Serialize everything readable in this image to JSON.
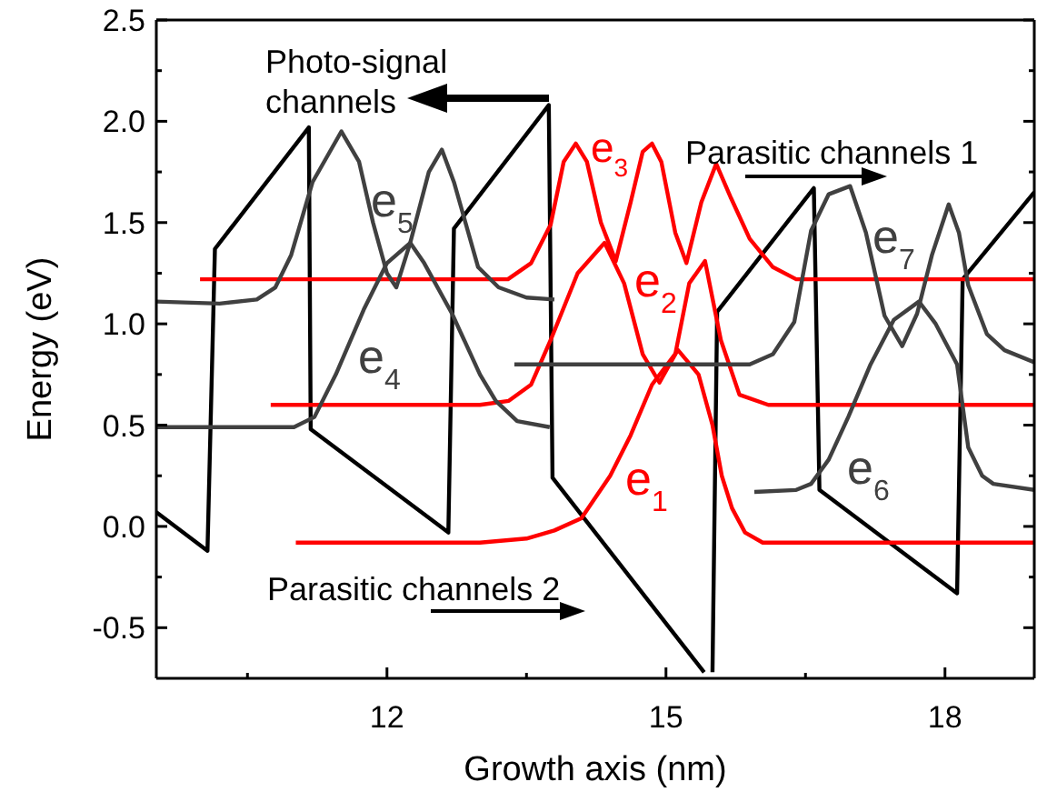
{
  "chart_data": {
    "type": "line",
    "xlabel": "Growth axis (nm)",
    "ylabel": "Energy (eV)",
    "xlim": [
      9.52,
      18.96
    ],
    "ylim": [
      -0.75,
      2.5
    ],
    "xticks": [
      {
        "value": 10.5,
        "label": null
      },
      12,
      {
        "value": 13.5,
        "label": null
      },
      15,
      {
        "value": 16.5,
        "label": null
      },
      18
    ],
    "yticks": [
      {
        "value": -0.5,
        "label": "-0.5"
      },
      {
        "value": -0.25,
        "label": null
      },
      {
        "value": 0,
        "label": "0.0"
      },
      {
        "value": 0.25,
        "label": null
      },
      {
        "value": 0.5,
        "label": "0.5"
      },
      {
        "value": 0.75,
        "label": null
      },
      {
        "value": 1,
        "label": "1.0"
      },
      {
        "value": 1.25,
        "label": null
      },
      {
        "value": 1.5,
        "label": "1.5"
      },
      {
        "value": 1.75,
        "label": null
      },
      {
        "value": 2,
        "label": "2.0"
      },
      {
        "value": 2.25,
        "label": null
      },
      {
        "value": 2.5,
        "label": "2.5"
      }
    ],
    "annotations": [
      "Photo-signal channels",
      "Parasitic channels 1",
      "Parasitic channels 2"
    ],
    "series": [
      {
        "type": "line",
        "color": "#000000",
        "x": [
          9.52,
          10.07,
          10.15,
          11.16,
          11.18,
          12.66,
          12.72,
          13.74,
          13.78,
          15.41,
          15.46,
          15.5,
          15.55,
          16.59,
          16.65,
          18.13,
          18.19,
          18.96
        ],
        "values": [
          0.07,
          -0.12,
          1.37,
          1.97,
          0.48,
          -0.03,
          1.47,
          2.08,
          0.24,
          -0.72,
          null,
          -0.72,
          1.06,
          1.67,
          0.18,
          -0.33,
          1.22,
          1.65
        ]
      },
      {
        "type": "line",
        "name": "e$_{1}$",
        "color": "#ff0000",
        "x": [
          11.02,
          13.0,
          13.5,
          13.8,
          14.09,
          14.4,
          14.62,
          14.85,
          15.13,
          15.35,
          15.5,
          15.6,
          15.71,
          15.85,
          16.04,
          18.96
        ],
        "values": [
          -0.08,
          -0.08,
          -0.06,
          -0.02,
          0.04,
          0.25,
          0.45,
          0.7,
          0.87,
          0.75,
          0.5,
          0.25,
          0.09,
          -0.03,
          -0.08,
          -0.08
        ]
      },
      {
        "type": "line",
        "name": "e$_{2}$",
        "color": "#ff0000",
        "x": [
          10.75,
          13.0,
          13.31,
          13.55,
          13.76,
          14.05,
          14.34,
          14.55,
          14.75,
          14.93,
          15.1,
          15.25,
          15.42,
          15.59,
          15.79,
          16.1,
          18.96
        ],
        "values": [
          0.6,
          0.6,
          0.62,
          0.7,
          0.92,
          1.25,
          1.4,
          1.2,
          0.85,
          0.71,
          0.85,
          1.2,
          1.31,
          0.92,
          0.65,
          0.6,
          0.6
        ]
      },
      {
        "type": "line",
        "name": "e$_{3}$",
        "color": "#ff0000",
        "x": [
          9.99,
          13.3,
          13.55,
          13.76,
          13.9,
          14.03,
          14.15,
          14.3,
          14.46,
          14.62,
          14.75,
          14.85,
          14.95,
          15.1,
          15.22,
          15.38,
          15.54,
          15.7,
          15.9,
          16.15,
          16.4,
          18.96
        ],
        "values": [
          1.22,
          1.22,
          1.3,
          1.49,
          1.8,
          1.89,
          1.8,
          1.5,
          1.31,
          1.6,
          1.85,
          1.89,
          1.8,
          1.45,
          1.3,
          1.6,
          1.79,
          1.62,
          1.42,
          1.28,
          1.22,
          1.22
        ]
      },
      {
        "type": "line",
        "name": "e$_{4}$",
        "color": "#404040",
        "x": [
          9.52,
          11.0,
          11.22,
          11.45,
          11.75,
          12.0,
          12.25,
          12.4,
          12.7,
          13.0,
          13.17,
          13.4,
          13.75
        ],
        "values": [
          0.49,
          0.49,
          0.54,
          0.75,
          1.07,
          1.3,
          1.4,
          1.3,
          1.05,
          0.75,
          0.62,
          0.52,
          0.49
        ]
      },
      {
        "type": "line",
        "name": "e$_{5}$",
        "color": "#404040",
        "x": [
          9.52,
          10.2,
          10.6,
          10.8,
          10.97,
          11.2,
          11.51,
          11.7,
          11.85,
          12.0,
          12.1,
          12.25,
          12.45,
          12.59,
          12.72,
          12.98,
          13.2,
          13.5,
          13.8
        ],
        "values": [
          1.11,
          1.1,
          1.12,
          1.18,
          1.34,
          1.7,
          1.95,
          1.8,
          1.5,
          1.25,
          1.18,
          1.4,
          1.75,
          1.86,
          1.7,
          1.28,
          1.18,
          1.13,
          1.12
        ]
      },
      {
        "type": "line",
        "name": "e$_{6}$",
        "color": "#404040",
        "x": [
          15.95,
          16.4,
          16.56,
          16.75,
          16.96,
          17.2,
          17.45,
          17.72,
          17.9,
          18.13,
          18.25,
          18.4,
          18.52,
          18.96
        ],
        "values": [
          0.17,
          0.18,
          0.21,
          0.33,
          0.54,
          0.8,
          1.02,
          1.11,
          1.0,
          0.8,
          0.39,
          0.25,
          0.21,
          0.18
        ]
      },
      {
        "type": "line",
        "name": "e$_{7}$",
        "color": "#404040",
        "x": [
          13.37,
          15.9,
          16.15,
          16.38,
          16.56,
          16.75,
          16.98,
          17.15,
          17.35,
          17.54,
          17.7,
          17.86,
          18.04,
          18.15,
          18.25,
          18.45,
          18.64,
          18.96
        ],
        "values": [
          0.8,
          0.8,
          0.85,
          1.01,
          1.46,
          1.64,
          1.68,
          1.45,
          1.04,
          0.89,
          1.05,
          1.34,
          1.59,
          1.45,
          1.19,
          0.95,
          0.87,
          0.81
        ]
      }
    ]
  }
}
